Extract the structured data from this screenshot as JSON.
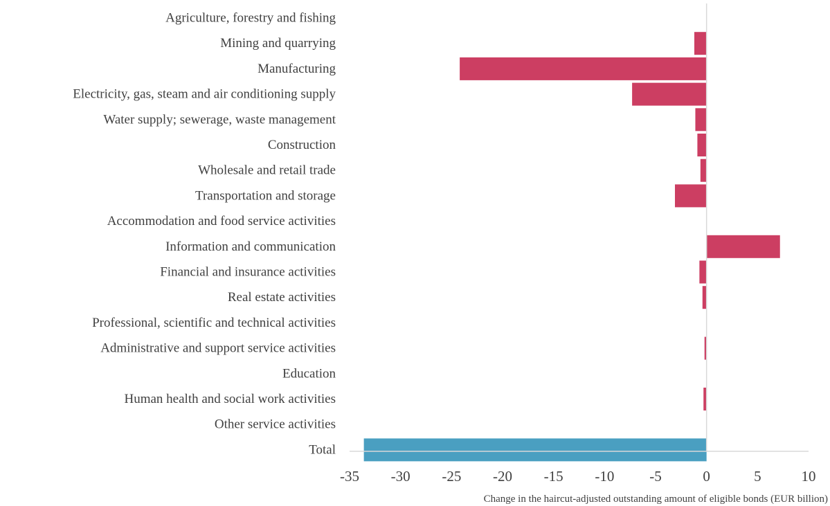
{
  "chart_data": {
    "type": "bar",
    "orientation": "horizontal",
    "title": "",
    "xlabel": "Change in the haircut-adjusted outstanding amount of eligible bonds (EUR billion)",
    "ylabel": "",
    "xlim": [
      -35,
      10
    ],
    "xticks": [
      -35,
      -30,
      -25,
      -20,
      -15,
      -10,
      -5,
      0,
      5,
      10
    ],
    "xtick_labels": [
      "-35",
      "-30",
      "-25",
      "-20",
      "-15",
      "-10",
      "-5",
      "0",
      "5",
      "10"
    ],
    "grid": false,
    "legend": "none",
    "categories": [
      "Agriculture, forestry and fishing",
      "Mining and quarrying",
      "Manufacturing",
      "Electricity, gas, steam and air conditioning supply",
      "Water supply; sewerage, waste management",
      "Construction",
      "Wholesale and retail trade",
      "Transportation and storage",
      "Accommodation and food service activities",
      "Information and communication",
      "Financial and insurance activities",
      "Real estate activities",
      "Professional, scientific and technical activities",
      "Administrative and support service activities",
      "Education",
      "Human health and social work activities",
      "Other service activities",
      "Total"
    ],
    "values": [
      0,
      -1.2,
      -24.2,
      -7.3,
      -1.1,
      -0.9,
      -0.6,
      -3.1,
      0,
      7.2,
      -0.7,
      -0.4,
      0,
      -0.2,
      0,
      -0.3,
      0,
      -33.6
    ],
    "bar_colors": [
      "#cc3e62",
      "#cc3e62",
      "#cc3e62",
      "#cc3e62",
      "#cc3e62",
      "#cc3e62",
      "#cc3e62",
      "#cc3e62",
      "#cc3e62",
      "#cc3e62",
      "#cc3e62",
      "#cc3e62",
      "#cc3e62",
      "#cc3e62",
      "#cc3e62",
      "#cc3e62",
      "#cc3e62",
      "#4a9fc1"
    ],
    "axis_color": "#d9d9d9"
  }
}
